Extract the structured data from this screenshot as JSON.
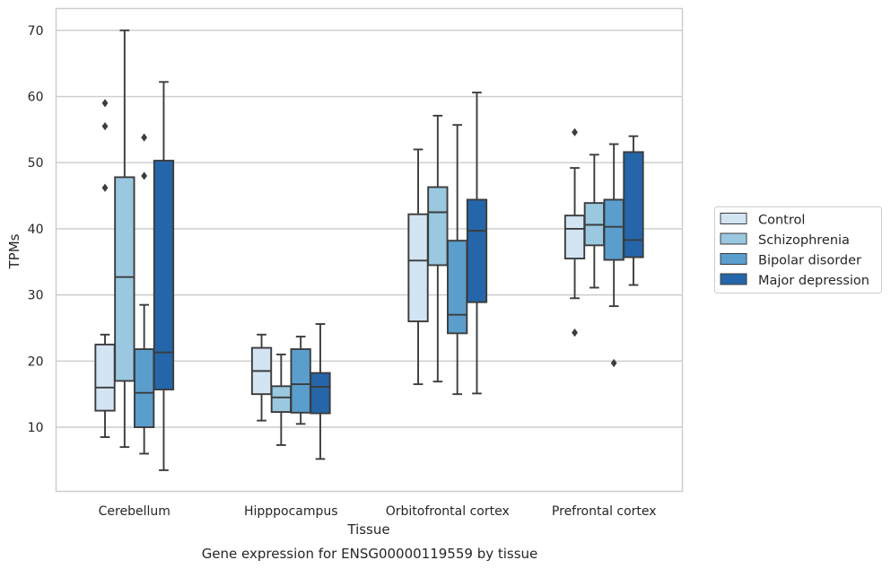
{
  "caption": "Gene expression for ENSG00000119559 by tissue",
  "chart_data": {
    "type": "box",
    "xlabel": "Tissue",
    "ylabel": "TPMs",
    "categories": [
      "Cerebellum",
      "Hipppocampus",
      "Orbitofrontal cortex",
      "Prefrontal cortex"
    ],
    "ylim": [
      0.3,
      73.3
    ],
    "yticks": [
      10,
      20,
      30,
      40,
      50,
      60,
      70
    ],
    "grid": true,
    "legend_position": "right",
    "series": [
      {
        "name": "Control",
        "color": "#d3e4f3",
        "boxes": [
          {
            "whislo": 8.5,
            "q1": 12.5,
            "med": 16.0,
            "q3": 22.5,
            "whishi": 24.0,
            "fliers": [
              46.2,
              55.5,
              59.0
            ]
          },
          {
            "whislo": 11.0,
            "q1": 15.0,
            "med": 18.5,
            "q3": 22.0,
            "whishi": 24.0,
            "fliers": []
          },
          {
            "whislo": 16.5,
            "q1": 26.0,
            "med": 35.2,
            "q3": 42.2,
            "whishi": 52.0,
            "fliers": []
          },
          {
            "whislo": 29.5,
            "q1": 35.5,
            "med": 40.0,
            "q3": 42.0,
            "whishi": 49.2,
            "fliers": [
              24.3,
              54.6
            ]
          }
        ]
      },
      {
        "name": "Schizophrenia",
        "color": "#9ac8e0",
        "boxes": [
          {
            "whislo": 7.0,
            "q1": 17.0,
            "med": 32.7,
            "q3": 47.8,
            "whishi": 70.0,
            "fliers": []
          },
          {
            "whislo": 7.3,
            "q1": 12.3,
            "med": 14.5,
            "q3": 16.2,
            "whishi": 21.0,
            "fliers": []
          },
          {
            "whislo": 16.9,
            "q1": 34.5,
            "med": 42.5,
            "q3": 46.3,
            "whishi": 57.1,
            "fliers": []
          },
          {
            "whislo": 31.1,
            "q1": 37.5,
            "med": 40.6,
            "q3": 43.9,
            "whishi": 51.2,
            "fliers": []
          }
        ]
      },
      {
        "name": "Bipolar disorder",
        "color": "#5a9ecd",
        "boxes": [
          {
            "whislo": 6.0,
            "q1": 10.0,
            "med": 15.2,
            "q3": 21.8,
            "whishi": 28.5,
            "fliers": [
              48.0,
              53.8
            ]
          },
          {
            "whislo": 10.5,
            "q1": 12.2,
            "med": 16.5,
            "q3": 21.8,
            "whishi": 23.7,
            "fliers": []
          },
          {
            "whislo": 15.0,
            "q1": 24.2,
            "med": 27.0,
            "q3": 38.2,
            "whishi": 55.7,
            "fliers": []
          },
          {
            "whislo": 28.3,
            "q1": 35.3,
            "med": 40.3,
            "q3": 44.4,
            "whishi": 52.8,
            "fliers": [
              19.7
            ]
          }
        ]
      },
      {
        "name": "Major depression",
        "color": "#2466a9",
        "boxes": [
          {
            "whislo": 3.5,
            "q1": 15.7,
            "med": 21.3,
            "q3": 50.3,
            "whishi": 62.2,
            "fliers": []
          },
          {
            "whislo": 5.2,
            "q1": 12.1,
            "med": 16.1,
            "q3": 18.2,
            "whishi": 25.6,
            "fliers": []
          },
          {
            "whislo": 15.1,
            "q1": 28.9,
            "med": 39.7,
            "q3": 44.4,
            "whishi": 60.6,
            "fliers": []
          },
          {
            "whislo": 31.5,
            "q1": 35.7,
            "med": 38.3,
            "q3": 51.6,
            "whishi": 54.0,
            "fliers": []
          }
        ]
      }
    ]
  }
}
